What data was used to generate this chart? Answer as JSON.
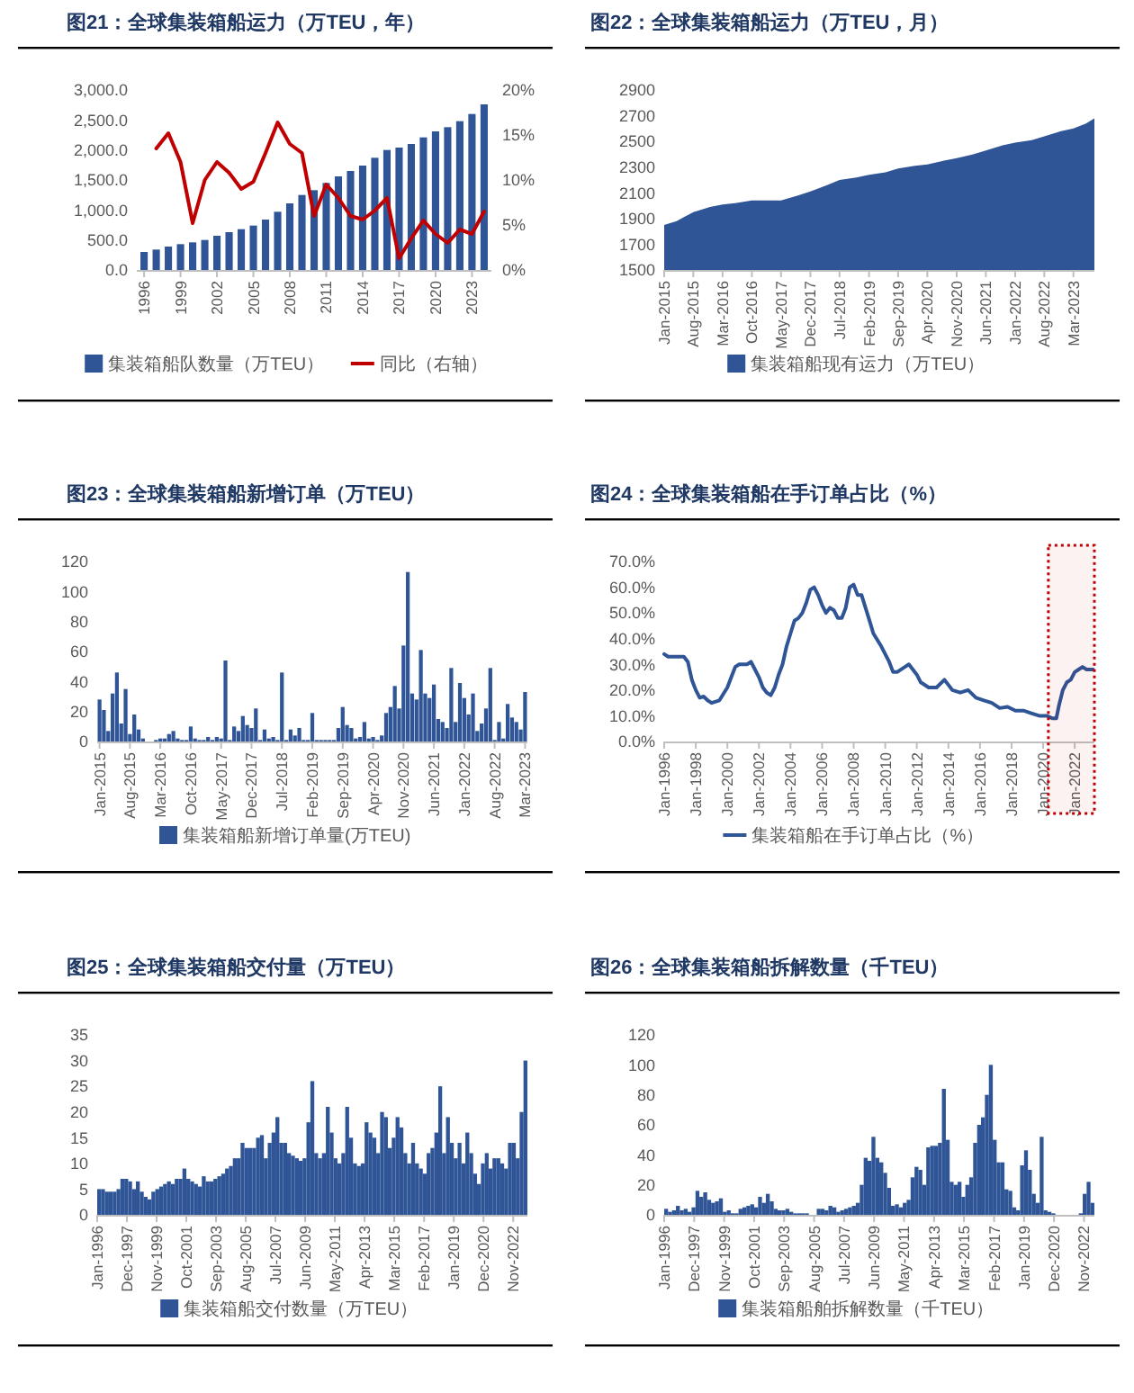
{
  "chart_data": [
    {
      "type": "bar",
      "title": "图21：全球集装箱船运力（万TEU，年）",
      "categories": [
        "1996",
        null,
        null,
        "1999",
        null,
        null,
        "2002",
        null,
        null,
        "2005",
        null,
        null,
        "2008",
        null,
        null,
        "2011",
        null,
        null,
        "2014",
        null,
        null,
        "2017",
        null,
        null,
        "2020",
        null,
        null,
        "2023",
        null
      ],
      "series": [
        {
          "name": "集装箱船队数量（万TEU）",
          "color": "#2f5597",
          "values": [
            300,
            340,
            390,
            430,
            460,
            500,
            570,
            630,
            680,
            740,
            840,
            970,
            1110,
            1250,
            1330,
            1450,
            1560,
            1650,
            1740,
            1870,
            2000,
            2040,
            2100,
            2210,
            2310,
            2380,
            2480,
            2600,
            2760
          ]
        },
        {
          "name": "同比（右轴）",
          "type": "line",
          "axis": "y2",
          "color": "#c00000",
          "values": [
            null,
            13.5,
            15.2,
            12,
            5.2,
            10,
            12,
            10.8,
            9,
            9.8,
            13,
            16.4,
            14,
            13,
            6,
            9.5,
            8,
            6,
            5.6,
            6.6,
            8,
            1.3,
            3.5,
            5.5,
            4,
            3,
            4.5,
            4,
            6.5
          ]
        }
      ],
      "ylim": [
        0,
        3000
      ],
      "yticks": [
        {
          "value": 0,
          "label": "0.0"
        },
        {
          "value": 500,
          "label": "500.0"
        },
        {
          "value": 1000,
          "label": "1,000.0"
        },
        {
          "value": 1500,
          "label": "1,500.0"
        },
        {
          "value": 2000,
          "label": "2,000.0"
        },
        {
          "value": 2500,
          "label": "2,500.0"
        },
        {
          "value": 3000,
          "label": "3,000.0"
        }
      ],
      "y2lim": [
        0,
        20
      ],
      "y2ticks": [
        {
          "value": 0,
          "label": "0%"
        },
        {
          "value": 5,
          "label": "5%"
        },
        {
          "value": 10,
          "label": "10%"
        },
        {
          "value": 15,
          "label": "15%"
        },
        {
          "value": 20,
          "label": "20%"
        }
      ],
      "legend": "bottom"
    },
    {
      "type": "area",
      "title": "图22：全球集装箱船运力（万TEU，月）",
      "x": [
        "2015-01",
        "2015-04",
        "2015-08",
        "2015-12",
        "2016-03",
        "2016-06",
        "2016-10",
        "2017-02",
        "2017-05",
        "2017-09",
        "2017-12",
        "2018-04",
        "2018-07",
        "2018-11",
        "2019-02",
        "2019-06",
        "2019-09",
        "2020-01",
        "2020-04",
        "2020-08",
        "2020-11",
        "2021-03",
        "2021-06",
        "2021-10",
        "2022-01",
        "2022-05",
        "2022-08",
        "2022-12",
        "2023-03",
        "2023-06",
        "2023-08"
      ],
      "series": [
        {
          "name": "集装箱船现有运力（万TEU）",
          "color": "#2f5597",
          "values": [
            1850,
            1880,
            1950,
            1990,
            2010,
            2020,
            2040,
            2040,
            2040,
            2080,
            2110,
            2160,
            2200,
            2220,
            2240,
            2260,
            2290,
            2310,
            2320,
            2350,
            2370,
            2400,
            2430,
            2470,
            2490,
            2510,
            2540,
            2580,
            2600,
            2640,
            2680
          ]
        }
      ],
      "xlim": [
        "2015-01",
        "2023-08"
      ],
      "xticks": [
        {
          "value": "2015-01",
          "label": "Jan-2015"
        },
        {
          "value": "2015-08",
          "label": "Aug-2015"
        },
        {
          "value": "2016-03",
          "label": "Mar-2016"
        },
        {
          "value": "2016-10",
          "label": "Oct-2016"
        },
        {
          "value": "2017-05",
          "label": "May-2017"
        },
        {
          "value": "2017-12",
          "label": "Dec-2017"
        },
        {
          "value": "2018-07",
          "label": "Jul-2018"
        },
        {
          "value": "2019-02",
          "label": "Feb-2019"
        },
        {
          "value": "2019-09",
          "label": "Sep-2019"
        },
        {
          "value": "2020-04",
          "label": "Apr-2020"
        },
        {
          "value": "2020-11",
          "label": "Nov-2020"
        },
        {
          "value": "2021-06",
          "label": "Jun-2021"
        },
        {
          "value": "2022-01",
          "label": "Jan-2022"
        },
        {
          "value": "2022-08",
          "label": "Aug-2022"
        },
        {
          "value": "2023-03",
          "label": "Mar-2023"
        }
      ],
      "ylim": [
        1500,
        2900
      ],
      "yticks": [
        1500,
        1700,
        1900,
        2100,
        2300,
        2500,
        2700,
        2900
      ],
      "legend": "bottom"
    },
    {
      "type": "bar",
      "title": "图23：全球集装箱船新增订单（万TEU）",
      "categories": [
        "Jan-2015",
        null,
        null,
        null,
        null,
        null,
        null,
        "Aug-2015",
        null,
        null,
        null,
        null,
        null,
        null,
        "Mar-2016",
        null,
        null,
        null,
        null,
        null,
        null,
        "Oct-2016",
        null,
        null,
        null,
        null,
        null,
        null,
        "May-2017",
        null,
        null,
        null,
        null,
        null,
        null,
        "Dec-2017",
        null,
        null,
        null,
        null,
        null,
        null,
        "Jul-2018",
        null,
        null,
        null,
        null,
        null,
        null,
        "Feb-2019",
        null,
        null,
        null,
        null,
        null,
        null,
        "Sep-2019",
        null,
        null,
        null,
        null,
        null,
        null,
        "Apr-2020",
        null,
        null,
        null,
        null,
        null,
        null,
        "Nov-2020",
        null,
        null,
        null,
        null,
        null,
        null,
        "Jun-2021",
        null,
        null,
        null,
        null,
        null,
        null,
        "Jan-2022",
        null,
        null,
        null,
        null,
        null,
        null,
        "Aug-2022",
        null,
        null,
        null,
        null,
        null,
        null,
        "Mar-2023"
      ],
      "series": [
        {
          "name": "集装箱船新增订单量(万TEU)",
          "color": "#2f5597",
          "values": [
            28,
            21,
            7,
            32,
            46,
            12,
            35,
            5,
            18,
            8,
            2,
            0,
            0,
            1,
            2,
            2,
            5,
            7,
            2,
            1,
            1,
            10,
            2,
            1,
            1,
            3,
            1,
            3,
            2,
            54,
            1,
            10,
            7,
            17,
            11,
            9,
            22,
            1,
            8,
            2,
            3,
            1,
            46,
            1,
            8,
            4,
            9,
            1,
            1,
            19,
            1,
            1,
            1,
            1,
            1,
            9,
            23,
            11,
            9,
            2,
            3,
            13,
            2,
            3,
            1,
            4,
            19,
            23,
            37,
            22,
            64,
            113,
            32,
            28,
            61,
            32,
            29,
            38,
            15,
            13,
            9,
            49,
            13,
            39,
            29,
            18,
            32,
            7,
            12,
            22,
            49,
            1,
            13,
            2,
            25,
            16,
            13,
            8,
            33
          ]
        }
      ],
      "ylim": [
        0,
        120
      ],
      "yticks": [
        0,
        20,
        40,
        60,
        80,
        100,
        120
      ],
      "legend": "bottom"
    },
    {
      "type": "line",
      "title": "图24：全球集装箱船在手订单占比（%）",
      "x": [
        "1996-01",
        "1996-04",
        "1996-10",
        "1997-04",
        "1997-07",
        "1997-10",
        "1998-01",
        "1998-04",
        "1998-07",
        "1998-10",
        "1999-01",
        "1999-07",
        "2000-01",
        "2000-04",
        "2000-07",
        "2000-10",
        "2001-04",
        "2001-07",
        "2001-10",
        "2002-01",
        "2002-04",
        "2002-07",
        "2002-10",
        "2003-01",
        "2003-04",
        "2003-07",
        "2003-10",
        "2004-01",
        "2004-04",
        "2004-07",
        "2004-10",
        "2005-01",
        "2005-04",
        "2005-07",
        "2005-10",
        "2006-01",
        "2006-04",
        "2006-07",
        "2006-10",
        "2007-01",
        "2007-04",
        "2007-07",
        "2007-10",
        "2008-01",
        "2008-04",
        "2008-07",
        "2008-10",
        "2009-01",
        "2009-04",
        "2009-10",
        "2010-04",
        "2010-07",
        "2010-10",
        "2011-04",
        "2011-07",
        "2011-10",
        "2012-01",
        "2012-04",
        "2012-10",
        "2013-04",
        "2013-10",
        "2014-01",
        "2014-04",
        "2014-10",
        "2015-04",
        "2015-10",
        "2016-04",
        "2016-10",
        "2017-04",
        "2017-10",
        "2018-04",
        "2018-10",
        "2019-04",
        "2019-10",
        "2020-04",
        "2020-08",
        "2020-11",
        "2021-01",
        "2021-04",
        "2021-07",
        "2021-10",
        "2022-01",
        "2022-04",
        "2022-07",
        "2022-10",
        "2023-03"
      ],
      "series": [
        {
          "name": "集装箱船在手订单占比（%）",
          "color": "#2f5597",
          "values": [
            34,
            33,
            33,
            33,
            31,
            24,
            20,
            17,
            17.5,
            16,
            15,
            16,
            21,
            25,
            29,
            30,
            30,
            31,
            28,
            25,
            21,
            19,
            18,
            21,
            26,
            30,
            37,
            42,
            47,
            48,
            50,
            54,
            59,
            60,
            57,
            53,
            50,
            52,
            51,
            48,
            48,
            52,
            60,
            61,
            57,
            57,
            52,
            47,
            42,
            37,
            31,
            27,
            27,
            29,
            30,
            28,
            26,
            23,
            21,
            21,
            24,
            22,
            20,
            19,
            20,
            17,
            16,
            15,
            13,
            13.5,
            12,
            12,
            11,
            10,
            10,
            9,
            9,
            14,
            20,
            23,
            24,
            27,
            28,
            29,
            28,
            28
          ]
        }
      ],
      "xlim": [
        "1996-01",
        "2023-04"
      ],
      "xticks": [
        {
          "value": "1996-01",
          "label": "Jan-1996"
        },
        {
          "value": "1998-01",
          "label": "Jan-1998"
        },
        {
          "value": "2000-01",
          "label": "Jan-2000"
        },
        {
          "value": "2002-01",
          "label": "Jan-2002"
        },
        {
          "value": "2004-01",
          "label": "Jan-2004"
        },
        {
          "value": "2006-01",
          "label": "Jan-2006"
        },
        {
          "value": "2008-01",
          "label": "Jan-2008"
        },
        {
          "value": "2010-01",
          "label": "Jan-2010"
        },
        {
          "value": "2012-01",
          "label": "Jan-2012"
        },
        {
          "value": "2014-01",
          "label": "Jan-2014"
        },
        {
          "value": "2016-01",
          "label": "Jan-2016"
        },
        {
          "value": "2018-01",
          "label": "Jan-2018"
        },
        {
          "value": "2020-01",
          "label": "Jan-2020"
        },
        {
          "value": "2022-01",
          "label": "Jan-2022"
        }
      ],
      "ylim": [
        0,
        70
      ],
      "yticks": [
        {
          "value": 0,
          "label": "0.0%"
        },
        {
          "value": 10,
          "label": "10.0%"
        },
        {
          "value": 20,
          "label": "20.0%"
        },
        {
          "value": 30,
          "label": "30.0%"
        },
        {
          "value": 40,
          "label": "40.0%"
        },
        {
          "value": 50,
          "label": "50.0%"
        },
        {
          "value": 60,
          "label": "60.0%"
        },
        {
          "value": 70,
          "label": "70.0%"
        }
      ],
      "bands": [
        {
          "axis": "x",
          "from": "2020-05",
          "to": "2023-04",
          "color": "#c00000"
        }
      ],
      "legend": "bottom"
    },
    {
      "type": "bar",
      "title": "图25：全球集装箱船交付量（万TEU）",
      "x": [
        "1996-01",
        "1996-04",
        "1996-07",
        "1996-10",
        "1997-01",
        "1997-04",
        "1997-07",
        "1997-10",
        "1998-01",
        "1998-04",
        "1998-07",
        "1998-10",
        "1999-01",
        "1999-04",
        "1999-07",
        "1999-10",
        "2000-01",
        "2000-04",
        "2000-07",
        "2000-10",
        "2001-01",
        "2001-04",
        "2001-07",
        "2001-10",
        "2002-01",
        "2002-04",
        "2002-07",
        "2002-10",
        "2003-01",
        "2003-04",
        "2003-07",
        "2003-10",
        "2004-01",
        "2004-04",
        "2004-07",
        "2004-10",
        "2005-01",
        "2005-04",
        "2005-07",
        "2005-10",
        "2006-01",
        "2006-04",
        "2006-07",
        "2006-10",
        "2007-01",
        "2007-04",
        "2007-07",
        "2007-10",
        "2008-01",
        "2008-04",
        "2008-07",
        "2008-10",
        "2009-01",
        "2009-04",
        "2009-07",
        "2009-10",
        "2010-01",
        "2010-04",
        "2010-07",
        "2010-10",
        "2011-01",
        "2011-04",
        "2011-07",
        "2011-10",
        "2012-01",
        "2012-04",
        "2012-07",
        "2012-10",
        "2013-01",
        "2013-04",
        "2013-07",
        "2013-10",
        "2014-01",
        "2014-04",
        "2014-07",
        "2014-10",
        "2015-01",
        "2015-04",
        "2015-07",
        "2015-10",
        "2016-01",
        "2016-04",
        "2016-07",
        "2016-10",
        "2017-01",
        "2017-04",
        "2017-07",
        "2017-10",
        "2018-01",
        "2018-04",
        "2018-07",
        "2018-10",
        "2019-01",
        "2019-04",
        "2019-07",
        "2019-10",
        "2020-01",
        "2020-04",
        "2020-07",
        "2020-10",
        "2021-01",
        "2021-04",
        "2021-07",
        "2021-10",
        "2022-01",
        "2022-04",
        "2022-07",
        "2022-10",
        "2023-01",
        "2023-04",
        "2023-07"
      ],
      "series": [
        {
          "name": "集装箱船交付数量（万TEU）",
          "color": "#2f5597",
          "values": [
            5,
            5,
            4.5,
            4.5,
            4.5,
            5,
            7,
            7,
            6.5,
            5,
            6.5,
            4.5,
            3.5,
            3,
            4.5,
            5,
            5.5,
            6,
            6.5,
            6,
            7,
            7,
            9,
            7,
            6.5,
            6,
            5.5,
            7.5,
            6.5,
            6.5,
            7,
            7.5,
            8,
            9,
            9.5,
            11,
            11,
            14,
            13,
            13,
            13,
            15,
            15.5,
            11,
            14,
            16,
            19,
            14,
            14,
            12,
            11.5,
            11,
            10.5,
            11,
            18,
            26,
            12,
            11,
            12,
            21,
            16,
            11,
            10,
            12,
            21,
            15,
            10,
            9.5,
            10,
            18,
            16,
            15,
            12,
            20,
            19,
            13,
            15,
            19,
            17,
            12,
            10,
            14,
            10,
            9,
            8,
            12,
            13,
            16,
            25,
            12,
            19,
            14,
            11,
            14,
            10,
            16,
            12,
            8,
            6,
            10,
            12,
            9,
            11,
            11,
            10,
            9,
            14,
            14,
            11,
            20,
            30
          ]
        }
      ],
      "xlim": [
        "1996-01",
        "2023-10"
      ],
      "xticks": [
        {
          "value": "1996-01",
          "label": "Jan-1996"
        },
        {
          "value": "1997-12",
          "label": "Dec-1997"
        },
        {
          "value": "1999-11",
          "label": "Nov-1999"
        },
        {
          "value": "2001-10",
          "label": "Oct-2001"
        },
        {
          "value": "2003-09",
          "label": "Sep-2003"
        },
        {
          "value": "2005-08",
          "label": "Aug-2005"
        },
        {
          "value": "2007-07",
          "label": "Jul-2007"
        },
        {
          "value": "2009-06",
          "label": "Jun-2009"
        },
        {
          "value": "2011-05",
          "label": "May-2011"
        },
        {
          "value": "2013-04",
          "label": "Apr-2013"
        },
        {
          "value": "2015-03",
          "label": "Mar-2015"
        },
        {
          "value": "2017-02",
          "label": "Feb-2017"
        },
        {
          "value": "2019-01",
          "label": "Jan-2019"
        },
        {
          "value": "2020-12",
          "label": "Dec-2020"
        },
        {
          "value": "2022-11",
          "label": "Nov-2022"
        }
      ],
      "ylim": [
        0,
        35
      ],
      "yticks": [
        0,
        5,
        10,
        15,
        20,
        25,
        30,
        35
      ],
      "legend": "bottom"
    },
    {
      "type": "bar",
      "title": "图26：全球集装箱船拆解数量（千TEU）",
      "x": [
        "1996-01",
        "1996-04",
        "1996-07",
        "1996-10",
        "1997-01",
        "1997-04",
        "1997-07",
        "1997-10",
        "1998-01",
        "1998-04",
        "1998-07",
        "1998-10",
        "1999-01",
        "1999-04",
        "1999-07",
        "1999-10",
        "2000-01",
        "2000-04",
        "2000-07",
        "2000-10",
        "2001-01",
        "2001-04",
        "2001-07",
        "2001-10",
        "2002-01",
        "2002-04",
        "2002-07",
        "2002-10",
        "2003-01",
        "2003-04",
        "2003-07",
        "2003-10",
        "2004-01",
        "2004-04",
        "2004-07",
        "2004-10",
        "2005-01",
        "2005-04",
        "2005-07",
        "2005-10",
        "2006-01",
        "2006-04",
        "2006-07",
        "2006-10",
        "2007-01",
        "2007-04",
        "2007-07",
        "2007-10",
        "2008-01",
        "2008-04",
        "2008-07",
        "2008-10",
        "2009-01",
        "2009-04",
        "2009-07",
        "2009-10",
        "2010-01",
        "2010-04",
        "2010-07",
        "2010-10",
        "2011-01",
        "2011-04",
        "2011-07",
        "2011-10",
        "2012-01",
        "2012-04",
        "2012-07",
        "2012-10",
        "2013-01",
        "2013-04",
        "2013-07",
        "2013-10",
        "2014-01",
        "2014-04",
        "2014-07",
        "2014-10",
        "2015-01",
        "2015-04",
        "2015-07",
        "2015-10",
        "2016-01",
        "2016-04",
        "2016-07",
        "2016-10",
        "2017-01",
        "2017-04",
        "2017-07",
        "2017-10",
        "2018-01",
        "2018-04",
        "2018-07",
        "2018-10",
        "2019-01",
        "2019-04",
        "2019-07",
        "2019-10",
        "2020-01",
        "2020-04",
        "2020-07",
        "2020-10",
        "2021-01",
        "2021-04",
        "2021-07",
        "2021-10",
        "2022-01",
        "2022-04",
        "2022-07",
        "2022-10",
        "2023-01",
        "2023-04"
      ],
      "series": [
        {
          "name": "集装箱船舶拆解数量（千TEU）",
          "color": "#2f5597",
          "values": [
            4,
            2,
            3,
            6,
            3,
            4,
            2,
            5,
            16,
            12,
            15,
            10,
            8,
            9,
            11,
            2,
            3,
            1,
            1,
            4,
            5,
            6,
            7,
            5,
            12,
            8,
            14,
            9,
            4,
            3,
            3,
            4,
            2,
            1,
            1,
            1,
            1,
            0,
            0,
            4,
            4,
            3,
            6,
            5,
            2,
            3,
            4,
            5,
            6,
            8,
            20,
            38,
            36,
            52,
            38,
            35,
            28,
            18,
            6,
            7,
            5,
            8,
            10,
            25,
            32,
            30,
            20,
            45,
            46,
            46,
            48,
            84,
            50,
            22,
            20,
            22,
            12,
            20,
            25,
            48,
            60,
            65,
            80,
            100,
            50,
            35,
            35,
            17,
            16,
            5,
            3,
            33,
            43,
            30,
            14,
            8,
            52,
            3,
            2,
            1,
            0,
            0,
            0,
            0,
            0,
            0,
            1,
            14,
            22,
            8
          ]
        }
      ],
      "xlim": [
        "1996-01",
        "2023-07"
      ],
      "xticks": [
        {
          "value": "1996-01",
          "label": "Jan-1996"
        },
        {
          "value": "1997-12",
          "label": "Dec-1997"
        },
        {
          "value": "1999-11",
          "label": "Nov-1999"
        },
        {
          "value": "2001-10",
          "label": "Oct-2001"
        },
        {
          "value": "2003-09",
          "label": "Sep-2003"
        },
        {
          "value": "2005-08",
          "label": "Aug-2005"
        },
        {
          "value": "2007-07",
          "label": "Jul-2007"
        },
        {
          "value": "2009-06",
          "label": "Jun-2009"
        },
        {
          "value": "2011-05",
          "label": "May-2011"
        },
        {
          "value": "2013-04",
          "label": "Apr-2013"
        },
        {
          "value": "2015-03",
          "label": "Mar-2015"
        },
        {
          "value": "2017-02",
          "label": "Feb-2017"
        },
        {
          "value": "2019-01",
          "label": "Jan-2019"
        },
        {
          "value": "2020-12",
          "label": "Dec-2020"
        },
        {
          "value": "2022-11",
          "label": "Nov-2022"
        }
      ],
      "ylim": [
        0,
        120
      ],
      "yticks": [
        0,
        20,
        40,
        60,
        80,
        100,
        120
      ],
      "legend": "bottom"
    }
  ]
}
